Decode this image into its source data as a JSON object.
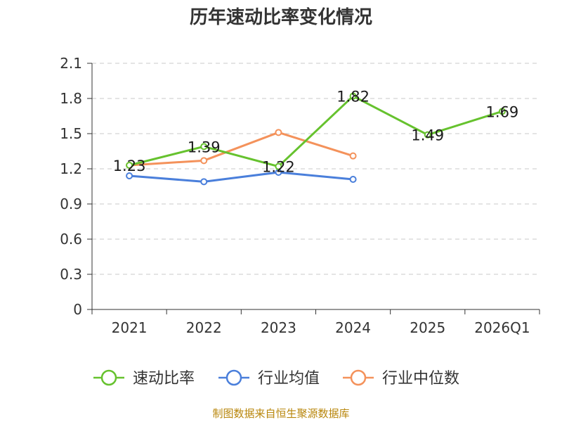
{
  "chart_data": {
    "type": "line",
    "title": "历年速动比率变化情况",
    "categories": [
      "2021",
      "2022",
      "2023",
      "2024",
      "2025",
      "2026Q1"
    ],
    "y_ticks": [
      "0",
      "0.3",
      "0.6",
      "0.9",
      "1.2",
      "1.5",
      "1.8",
      "2.1"
    ],
    "ylim": [
      0,
      2.1
    ],
    "grid": true,
    "legend_position": "bottom",
    "series": [
      {
        "name": "速动比率",
        "color": "#66c22e",
        "values": [
          1.23,
          1.39,
          1.22,
          1.82,
          1.49,
          1.69
        ],
        "labels": [
          "1.23",
          "1.39",
          "1.22",
          "1.82",
          "1.49",
          "1.69"
        ]
      },
      {
        "name": "行业均值",
        "color": "#4a7fdb",
        "values": [
          1.14,
          1.09,
          1.17,
          1.11,
          null,
          null
        ]
      },
      {
        "name": "行业中位数",
        "color": "#f4925b",
        "values": [
          1.23,
          1.27,
          1.51,
          1.31,
          null,
          null
        ]
      }
    ],
    "source": "制图数据来自恒生聚源数据库"
  }
}
